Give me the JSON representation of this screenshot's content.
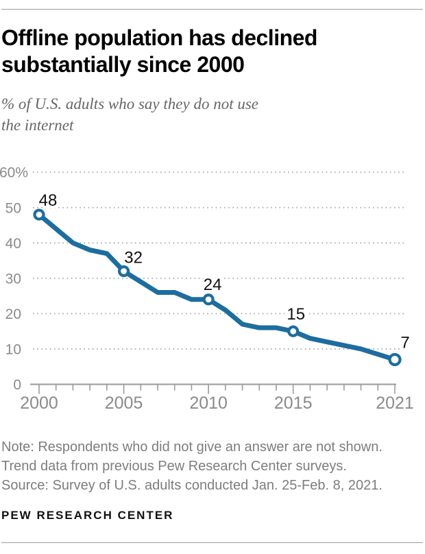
{
  "page": {
    "title": "Offline population has declined\nsubstantially since 2000",
    "subtitle": "% of U.S. adults who say they do not use\nthe internet",
    "notes": [
      "Note: Respondents who did not give an answer are not shown.",
      "Trend data from previous Pew Research Center surveys.",
      "Source: Survey of U.S. adults conducted Jan. 25-Feb. 8, 2021."
    ],
    "brand": "PEW RESEARCH CENTER"
  },
  "colors": {
    "line_blue": "#1d6d9e",
    "axis_gray": "#9a9a9a",
    "text_gray": "#7d7d7d",
    "label_dark": "#111111"
  },
  "chart_data": {
    "type": "line",
    "title": "Offline population has declined substantially since 2000",
    "subtitle": "% of U.S. adults who say they do not use the internet",
    "xlabel": "",
    "ylabel": "% of U.S. adults",
    "x": [
      2000,
      2001,
      2002,
      2003,
      2004,
      2005,
      2006,
      2007,
      2008,
      2009,
      2010,
      2011,
      2012,
      2013,
      2014,
      2015,
      2016,
      2017,
      2018,
      2019,
      2021
    ],
    "values": [
      48,
      44,
      40,
      38,
      37,
      32,
      29,
      26,
      26,
      24,
      24,
      21,
      17,
      16,
      16,
      15,
      13,
      12,
      11,
      10,
      7
    ],
    "labeled_points": [
      {
        "year": 2000,
        "value": 48,
        "label": "48"
      },
      {
        "year": 2005,
        "value": 32,
        "label": "32"
      },
      {
        "year": 2010,
        "value": 24,
        "label": "24"
      },
      {
        "year": 2015,
        "value": 15,
        "label": "15"
      },
      {
        "year": 2021,
        "value": 7,
        "label": "7"
      }
    ],
    "y_ticks": [
      {
        "value": 60,
        "label": "60%"
      },
      {
        "value": 50,
        "label": "50"
      },
      {
        "value": 40,
        "label": "40"
      },
      {
        "value": 30,
        "label": "30"
      },
      {
        "value": 20,
        "label": "20"
      },
      {
        "value": 10,
        "label": "10"
      },
      {
        "value": 0,
        "label": "0"
      }
    ],
    "x_ticks_major": [
      2000,
      2005,
      2010,
      2015,
      2021
    ],
    "xlim": [
      2000,
      2021
    ],
    "ylim": [
      0,
      65
    ],
    "grid": "dotted-horizontal",
    "legend": "none",
    "line_color": "#1d6d9e",
    "marker": "open-circle"
  }
}
